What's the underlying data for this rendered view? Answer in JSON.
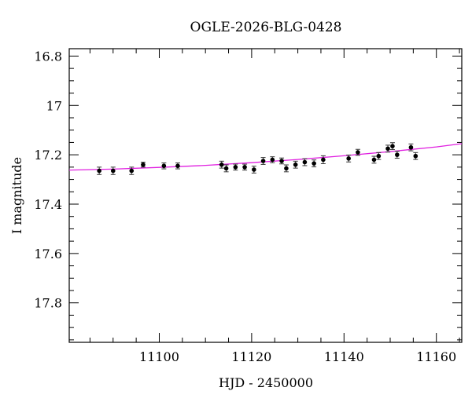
{
  "chart_data": {
    "type": "scatter",
    "title": "OGLE-2026-BLG-0428",
    "xlabel": "HJD - 2450000",
    "ylabel": "I magnitude",
    "xlim": [
      11080.5,
      11165.5
    ],
    "ylim": [
      17.96,
      16.77
    ],
    "y_inverted": true,
    "x_ticks": [
      11100,
      11120,
      11140,
      11160
    ],
    "x_tick_labels": [
      "11100",
      "11120",
      "11140",
      "11160"
    ],
    "y_ticks": [
      16.8,
      17.0,
      17.2,
      17.4,
      17.6,
      17.8
    ],
    "y_tick_labels": [
      "16.8",
      "17",
      "17.2",
      "17.4",
      "17.6",
      "17.8"
    ],
    "grid": false,
    "series": [
      {
        "style": "points-with-errorbars",
        "color": "#000000",
        "x": [
          11087.0,
          11090.0,
          11094.0,
          11096.5,
          11101.0,
          11104.0,
          11113.5,
          11114.5,
          11116.5,
          11118.5,
          11120.5,
          11122.5,
          11124.5,
          11126.5,
          11127.5,
          11129.5,
          11131.5,
          11133.5,
          11135.5,
          11141.0,
          11143.0,
          11146.5,
          11147.5,
          11149.5,
          11150.5,
          11151.5,
          11154.5,
          11155.5
        ],
        "y": [
          17.265,
          17.265,
          17.265,
          17.24,
          17.245,
          17.245,
          17.24,
          17.255,
          17.25,
          17.25,
          17.26,
          17.225,
          17.22,
          17.225,
          17.255,
          17.24,
          17.23,
          17.235,
          17.22,
          17.215,
          17.19,
          17.22,
          17.205,
          17.175,
          17.165,
          17.2,
          17.17,
          17.205
        ],
        "err": [
          0.015,
          0.015,
          0.015,
          0.01,
          0.012,
          0.012,
          0.014,
          0.014,
          0.012,
          0.012,
          0.014,
          0.014,
          0.012,
          0.012,
          0.014,
          0.014,
          0.014,
          0.014,
          0.016,
          0.014,
          0.012,
          0.014,
          0.014,
          0.014,
          0.014,
          0.014,
          0.014,
          0.014
        ]
      },
      {
        "style": "model-curve",
        "color": "#e020e0",
        "x": [
          11080.5,
          11090,
          11100,
          11110,
          11120,
          11130,
          11140,
          11150,
          11160,
          11165.5
        ],
        "y": [
          17.262,
          17.258,
          17.251,
          17.243,
          17.232,
          17.219,
          17.204,
          17.187,
          17.168,
          17.155
        ]
      }
    ]
  }
}
